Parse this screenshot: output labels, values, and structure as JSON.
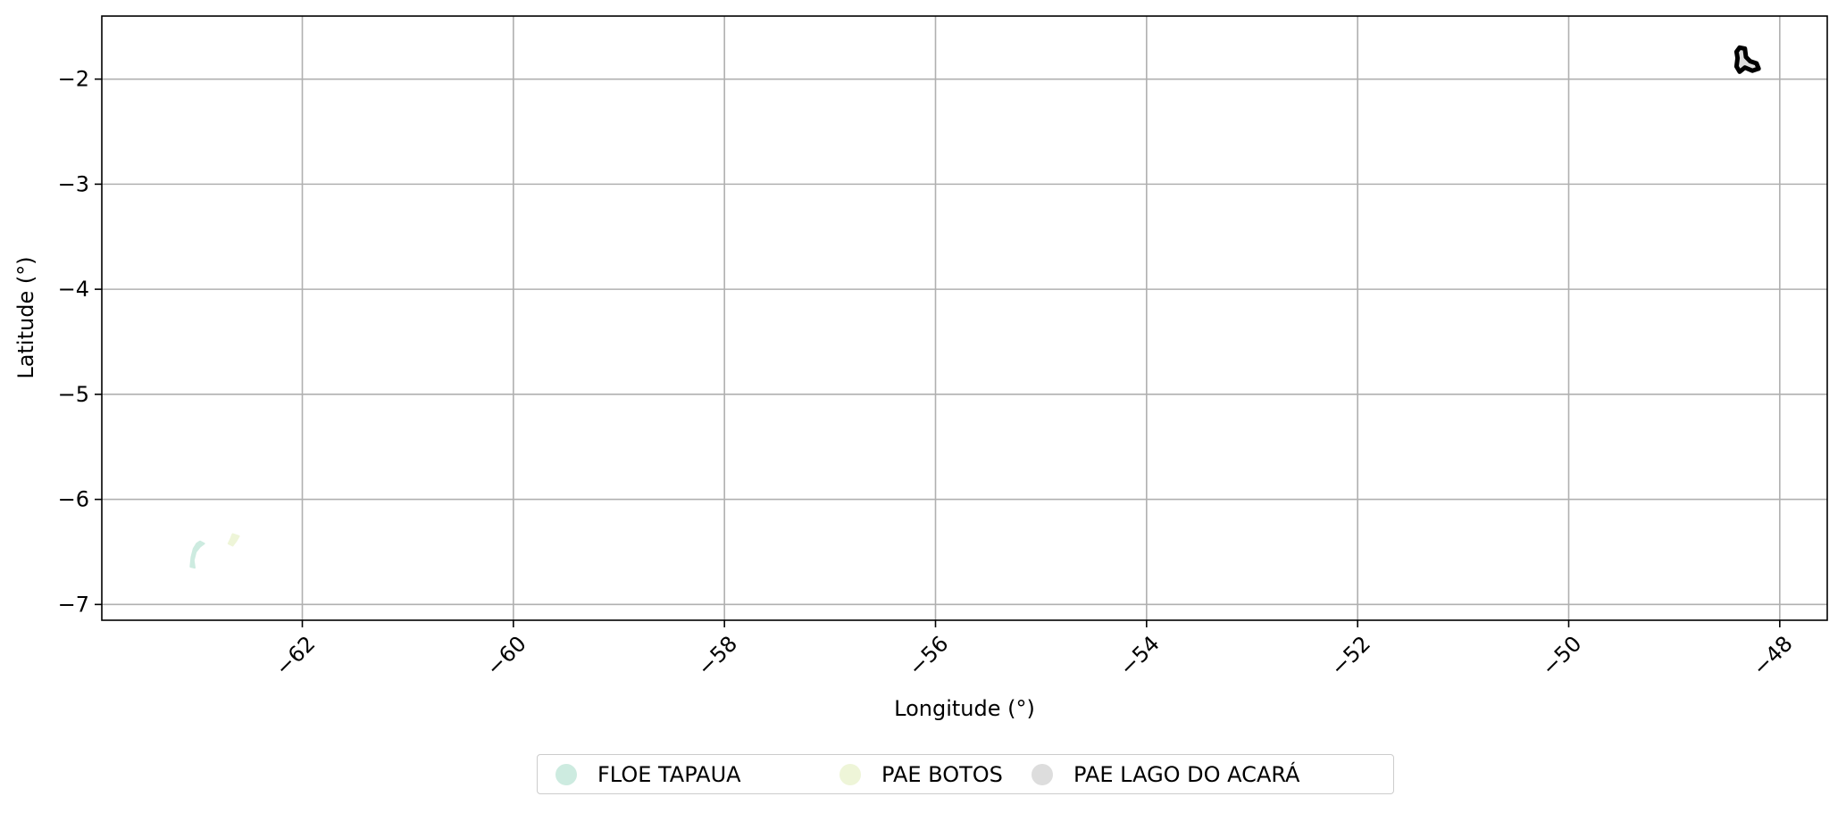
{
  "chart_data": {
    "type": "map",
    "xlabel": "Longitude (°)",
    "ylabel": "Latitude (°)",
    "xlim": [
      -63.9,
      -47.55
    ],
    "ylim": [
      -7.15,
      -1.4
    ],
    "x_ticks": [
      -62,
      -60,
      -58,
      -56,
      -54,
      -52,
      -50,
      -48
    ],
    "y_ticks": [
      -2,
      -3,
      -4,
      -5,
      -6,
      -7
    ],
    "x_tick_labels": [
      "−62",
      "−60",
      "−58",
      "−56",
      "−54",
      "−52",
      "−50",
      "−48"
    ],
    "y_tick_labels": [
      "−2",
      "−3",
      "−4",
      "−5",
      "−6",
      "−7"
    ],
    "grid": true,
    "legend_position": "bottom-center, below plot",
    "series": [
      {
        "name": "FLOE TAPAUA",
        "color": "#cdebe0",
        "polygon": [
          [
            -62.97,
            -6.4
          ],
          [
            -62.93,
            -6.42
          ],
          [
            -62.97,
            -6.45
          ],
          [
            -63.01,
            -6.5
          ],
          [
            -63.03,
            -6.58
          ],
          [
            -63.02,
            -6.65
          ],
          [
            -63.06,
            -6.64
          ],
          [
            -63.05,
            -6.55
          ],
          [
            -63.03,
            -6.47
          ],
          [
            -63.0,
            -6.42
          ]
        ]
      },
      {
        "name": "PAE BOTOS",
        "color": "#eef5d8",
        "polygon": [
          [
            -62.66,
            -6.33
          ],
          [
            -62.6,
            -6.35
          ],
          [
            -62.63,
            -6.4
          ],
          [
            -62.66,
            -6.44
          ],
          [
            -62.7,
            -6.42
          ],
          [
            -62.68,
            -6.38
          ]
        ]
      },
      {
        "name": "PAE LAGO DO ACARÁ",
        "color": "#dddddd",
        "polygon": [
          [
            -48.38,
            -1.7
          ],
          [
            -48.33,
            -1.71
          ],
          [
            -48.32,
            -1.79
          ],
          [
            -48.28,
            -1.83
          ],
          [
            -48.22,
            -1.85
          ],
          [
            -48.2,
            -1.9
          ],
          [
            -48.26,
            -1.92
          ],
          [
            -48.33,
            -1.89
          ],
          [
            -48.38,
            -1.93
          ],
          [
            -48.41,
            -1.88
          ],
          [
            -48.4,
            -1.8
          ],
          [
            -48.41,
            -1.74
          ]
        ]
      }
    ]
  }
}
